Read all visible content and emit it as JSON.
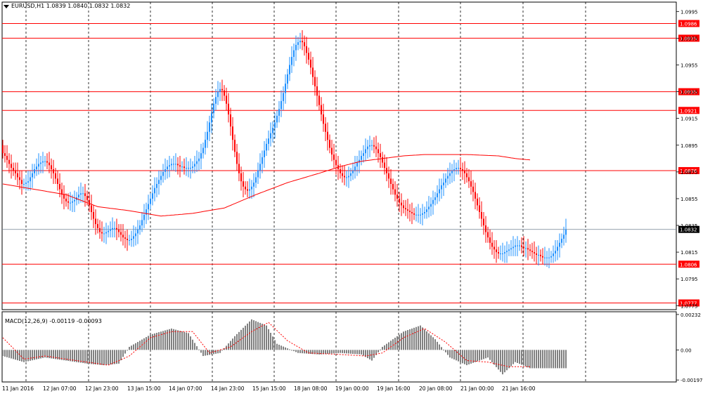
{
  "header": {
    "symbol": "EURUSD,H1",
    "ohlc": "1.0839 1.0840 1.0832 1.0832"
  },
  "macd_header": {
    "label": "MACD(12,26,9)",
    "values": "-0.00119 -0.00093"
  },
  "chart_data": [
    {
      "type": "candlestick",
      "instrument": "EURUSD",
      "timeframe": "H1",
      "ylim": [
        1.0772,
        1.1002
      ],
      "price_ticks": [
        "1.0995",
        "1.0975",
        "1.0955",
        "1.0935",
        "1.0915",
        "1.0895",
        "1.0875",
        "1.0855",
        "1.0835",
        "1.0815",
        "1.0795",
        "1.0775"
      ],
      "x_labels": [
        "11 Jan 2016",
        "12 Jan 07:00",
        "12 Jan 23:00",
        "13 Jan 15:00",
        "14 Jan 07:00",
        "14 Jan 23:00",
        "15 Jan 15:00",
        "18 Jan 08:00",
        "19 Jan 00:00",
        "19 Jan 16:00",
        "20 Jan 08:00",
        "21 Jan 00:00",
        "21 Jan 16:00"
      ],
      "horizontal_levels": [
        {
          "value": "1.0986",
          "color": "#ff0000"
        },
        {
          "value": "1.0975",
          "color": "#ff0000"
        },
        {
          "value": "1.0935",
          "color": "#ff0000"
        },
        {
          "value": "1.0921",
          "color": "#ff0000"
        },
        {
          "value": "1.0876",
          "color": "#ff0000"
        },
        {
          "value": "1.0806",
          "color": "#ff0000"
        },
        {
          "value": "1.0777",
          "color": "#ff0000"
        }
      ],
      "current_price": "1.0832",
      "colors": {
        "bull": "#1e90ff",
        "bear": "#ff0000",
        "ma": "#ff0000",
        "level": "#ff0000",
        "grid": "#000000"
      },
      "series": [
        {
          "name": "EURUSD,H1",
          "close": [
            1.0889,
            1.0887,
            1.0884,
            1.0881,
            1.0878,
            1.0876,
            1.0874,
            1.0871,
            1.0869,
            1.0866,
            1.0866,
            1.0867,
            1.0868,
            1.0871,
            1.0874,
            1.0877,
            1.0879,
            1.0881,
            1.0882,
            1.0883,
            1.0883,
            1.0882,
            1.088,
            1.0877,
            1.0874,
            1.087,
            1.0866,
            1.0862,
            1.0858,
            1.0855,
            1.0853,
            1.0852,
            1.0852,
            1.0853,
            1.0854,
            1.0856,
            1.0858,
            1.0859,
            1.0859,
            1.0857,
            1.0854,
            1.085,
            1.0845,
            1.084,
            1.0836,
            1.0833,
            1.083,
            1.0829,
            1.0829,
            1.083,
            1.0831,
            1.0832,
            1.0833,
            1.0833,
            1.0832,
            1.083,
            1.0828,
            1.0826,
            1.0825,
            1.0824,
            1.0824,
            1.0825,
            1.0827,
            1.0829,
            1.0832,
            1.0835,
            1.0839,
            1.0843,
            1.0847,
            1.0851,
            1.0855,
            1.0859,
            1.0863,
            1.0866,
            1.0869,
            1.0872,
            1.0875,
            1.0877,
            1.0879,
            1.088,
            1.0881,
            1.0881,
            1.0881,
            1.088,
            1.0879,
            1.0879,
            1.0878,
            1.0878,
            1.0878,
            1.0878,
            1.0879,
            1.0881,
            1.0883,
            1.0885,
            1.0889,
            1.0893,
            1.0899,
            1.0905,
            1.0912,
            1.0919,
            1.0926,
            1.0931,
            1.0935,
            1.0937,
            1.0936,
            1.0932,
            1.0926,
            1.0918,
            1.0909,
            1.0899,
            1.089,
            1.0881,
            1.0874,
            1.0868,
            1.0864,
            1.0862,
            1.0861,
            1.0862,
            1.0864,
            1.0867,
            1.0871,
            1.0876,
            1.0881,
            1.0886,
            1.0891,
            1.0896,
            1.09,
            1.0904,
            1.0908,
            1.0912,
            1.0917,
            1.0922,
            1.0928,
            1.0934,
            1.0941,
            1.0948,
            1.0955,
            1.0961,
            1.0966,
            1.097,
            1.0972,
            1.0973,
            1.0972,
            1.0969,
            1.0964,
            1.0959,
            1.0953,
            1.0946,
            1.0939,
            1.0932,
            1.0925,
            1.0918,
            1.0911,
            1.0905,
            1.0899,
            1.0893,
            1.0888,
            1.0884,
            1.088,
            1.0877,
            1.0874,
            1.0872,
            1.0871,
            1.0871,
            1.0872,
            1.0874,
            1.0876,
            1.0879,
            1.0882,
            1.0884,
            1.0887,
            1.0889,
            1.0892,
            1.0894,
            1.0895,
            1.0895,
            1.0894,
            1.0892,
            1.0889,
            1.0886,
            1.0882,
            1.0878,
            1.0874,
            1.087,
            1.0866,
            1.0862,
            1.0858,
            1.0855,
            1.0852,
            1.085,
            1.0848,
            1.0847,
            1.0846,
            1.0845,
            1.0844,
            1.0843,
            1.0843,
            1.0843,
            1.0843,
            1.0844,
            1.0845,
            1.0847,
            1.0849,
            1.0851,
            1.0854,
            1.0856,
            1.0859,
            1.0862,
            1.0865,
            1.0867,
            1.087,
            1.0872,
            1.0874,
            1.0876,
            1.0877,
            1.0878,
            1.0878,
            1.0877,
            1.0876,
            1.0874,
            1.0871,
            1.0868,
            1.0864,
            1.086,
            1.0855,
            1.085,
            1.0845,
            1.084,
            1.0835,
            1.083,
            1.0826,
            1.0822,
            1.0819,
            1.0817,
            1.0815,
            1.0814,
            1.0814,
            1.0814,
            1.0815,
            1.0816,
            1.0817,
            1.0818,
            1.0819,
            1.082,
            1.082,
            1.082,
            1.0819,
            1.0818,
            1.0818,
            1.0817,
            1.0816,
            1.0815,
            1.0814,
            1.0813,
            1.0813,
            1.0812,
            1.0811,
            1.0811,
            1.0811,
            1.0811,
            1.0812,
            1.0814,
            1.0816,
            1.0819,
            1.0822,
            1.0825,
            1.0828,
            1.0832
          ],
          "type": "candles"
        },
        {
          "name": "MA",
          "anchors": [
            [
              0,
              1.0866
            ],
            [
              30,
              1.0858
            ],
            [
              45,
              1.0849
            ],
            [
              60,
              1.0846
            ],
            [
              75,
              1.0842
            ],
            [
              90,
              1.0844
            ],
            [
              105,
              1.0848
            ],
            [
              120,
              1.0858
            ],
            [
              135,
              1.0867
            ],
            [
              150,
              1.0874
            ],
            [
              160,
              1.0879
            ],
            [
              170,
              1.0883
            ],
            [
              180,
              1.0885
            ],
            [
              190,
              1.0887
            ],
            [
              200,
              1.0888
            ],
            [
              220,
              1.0888
            ],
            [
              235,
              1.0887
            ],
            [
              243,
              1.0885
            ],
            [
              250,
              1.0884
            ]
          ]
        }
      ],
      "macd": {
        "ylim": [
          -0.0021,
          0.0025
        ],
        "ticks": [
          "0.00232",
          "0.00",
          "-0.00197"
        ],
        "histogram_color": "#808080",
        "signal_color": "#ff0000",
        "histogram_anchors": [
          [
            0,
            -0.0004
          ],
          [
            10,
            -0.0008
          ],
          [
            20,
            -0.0005
          ],
          [
            30,
            -0.0007
          ],
          [
            40,
            -0.0009
          ],
          [
            48,
            -0.001
          ],
          [
            55,
            -0.0009
          ],
          [
            60,
            0.0002
          ],
          [
            70,
            0.001
          ],
          [
            80,
            0.0014
          ],
          [
            88,
            0.0011
          ],
          [
            95,
            -0.0004
          ],
          [
            103,
            -0.0002
          ],
          [
            110,
            0.0009
          ],
          [
            118,
            0.002
          ],
          [
            125,
            0.0016
          ],
          [
            130,
            0.0004
          ],
          [
            140,
            -0.0002
          ],
          [
            150,
            -0.0003
          ],
          [
            160,
            -0.0002
          ],
          [
            170,
            -0.0003
          ],
          [
            175,
            -0.0007
          ],
          [
            180,
            0.0002
          ],
          [
            190,
            0.0012
          ],
          [
            198,
            0.0016
          ],
          [
            205,
            0.0007
          ],
          [
            212,
            -0.0005
          ],
          [
            220,
            -0.001
          ],
          [
            230,
            -0.0005
          ],
          [
            237,
            -0.0016
          ],
          [
            243,
            -0.0008
          ],
          [
            250,
            -0.0012
          ]
        ],
        "signal_anchors": [
          [
            0,
            0.0008
          ],
          [
            10,
            -0.0006
          ],
          [
            20,
            -0.0004
          ],
          [
            30,
            -0.0006
          ],
          [
            40,
            -0.0008
          ],
          [
            50,
            -0.001
          ],
          [
            60,
            -0.0004
          ],
          [
            70,
            0.0008
          ],
          [
            80,
            0.0012
          ],
          [
            90,
            0.0012
          ],
          [
            98,
            -0.0002
          ],
          [
            108,
            0.0002
          ],
          [
            118,
            0.0012
          ],
          [
            126,
            0.0018
          ],
          [
            135,
            0.0006
          ],
          [
            145,
            -0.0002
          ],
          [
            160,
            -0.0003
          ],
          [
            172,
            -0.0004
          ],
          [
            180,
            -0.0002
          ],
          [
            190,
            0.0008
          ],
          [
            200,
            0.0014
          ],
          [
            210,
            0.0005
          ],
          [
            220,
            -0.0007
          ],
          [
            230,
            -0.0008
          ],
          [
            240,
            -0.0011
          ],
          [
            250,
            -0.0011
          ]
        ]
      }
    }
  ]
}
